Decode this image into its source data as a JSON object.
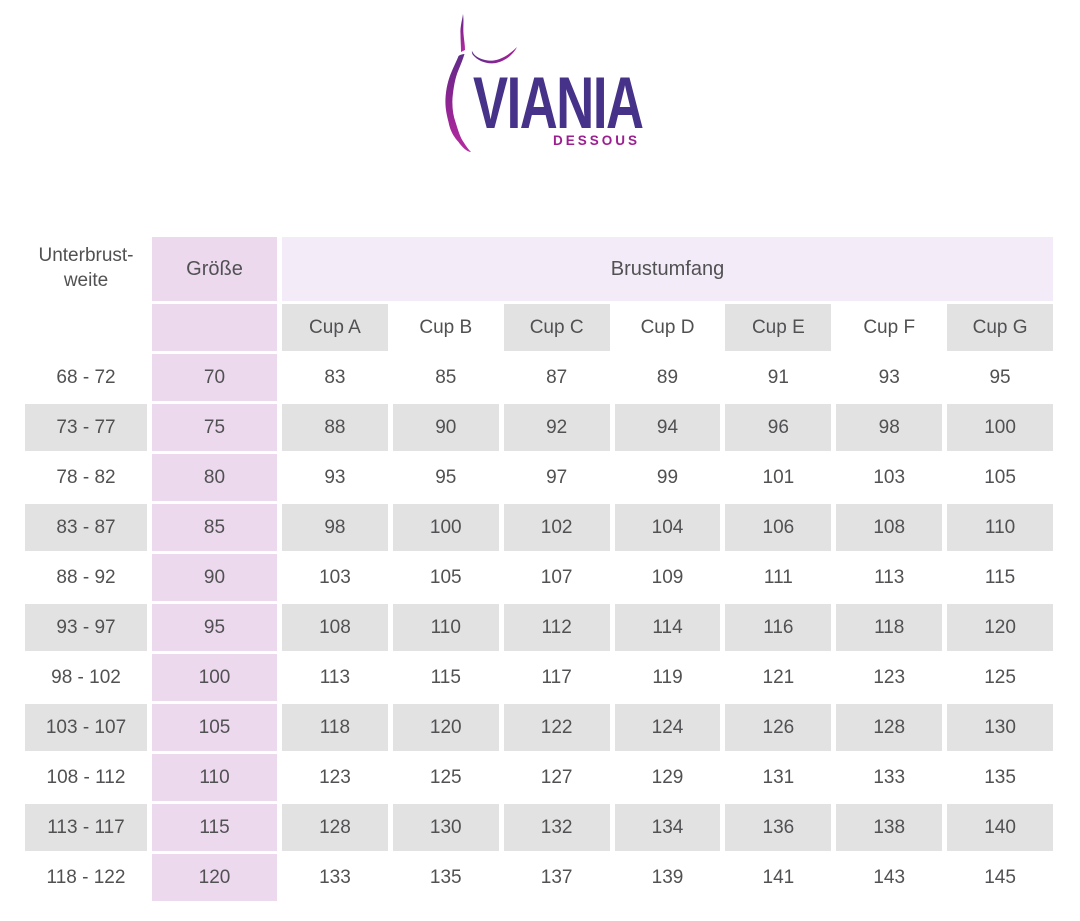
{
  "logo": {
    "brand": "VIANIA",
    "subtitle": "DESSOUS",
    "figure_icon": "female-silhouette"
  },
  "chart_data": {
    "type": "table",
    "headers": {
      "underbust_line1": "Unterbrust-",
      "underbust_line2": "weite",
      "size": "Größe",
      "bust_group": "Brustumfang",
      "cups": [
        "Cup A",
        "Cup B",
        "Cup C",
        "Cup D",
        "Cup E",
        "Cup F",
        "Cup G"
      ]
    },
    "rows": [
      {
        "underbust": "68 - 72",
        "size": "70",
        "cup_values": [
          83,
          85,
          87,
          89,
          91,
          93,
          95
        ]
      },
      {
        "underbust": "73 - 77",
        "size": "75",
        "cup_values": [
          88,
          90,
          92,
          94,
          96,
          98,
          100
        ]
      },
      {
        "underbust": "78 - 82",
        "size": "80",
        "cup_values": [
          93,
          95,
          97,
          99,
          101,
          103,
          105
        ]
      },
      {
        "underbust": "83 - 87",
        "size": "85",
        "cup_values": [
          98,
          100,
          102,
          104,
          106,
          108,
          110
        ]
      },
      {
        "underbust": "88 - 92",
        "size": "90",
        "cup_values": [
          103,
          105,
          107,
          109,
          111,
          113,
          115
        ]
      },
      {
        "underbust": "93 - 97",
        "size": "95",
        "cup_values": [
          108,
          110,
          112,
          114,
          116,
          118,
          120
        ]
      },
      {
        "underbust": "98 - 102",
        "size": "100",
        "cup_values": [
          113,
          115,
          117,
          119,
          121,
          123,
          125
        ]
      },
      {
        "underbust": "103 - 107",
        "size": "105",
        "cup_values": [
          118,
          120,
          122,
          124,
          126,
          128,
          130
        ]
      },
      {
        "underbust": "108 - 112",
        "size": "110",
        "cup_values": [
          123,
          125,
          127,
          129,
          131,
          133,
          135
        ]
      },
      {
        "underbust": "113 - 117",
        "size": "115",
        "cup_values": [
          128,
          130,
          132,
          134,
          136,
          138,
          140
        ]
      },
      {
        "underbust": "118 - 122",
        "size": "120",
        "cup_values": [
          133,
          135,
          137,
          139,
          141,
          143,
          145
        ]
      }
    ]
  },
  "colors": {
    "brand_text": "#463289",
    "subtitle_text": "#9c1e90",
    "figure_gradient_top": "#5f2c8a",
    "figure_gradient_bottom": "#b62ba1",
    "size_column_bg": "#ecd9ee",
    "bust_header_bg": "#f3ebf7",
    "row_stripe_bg": "#e3e2e3",
    "table_text": "#515153"
  }
}
